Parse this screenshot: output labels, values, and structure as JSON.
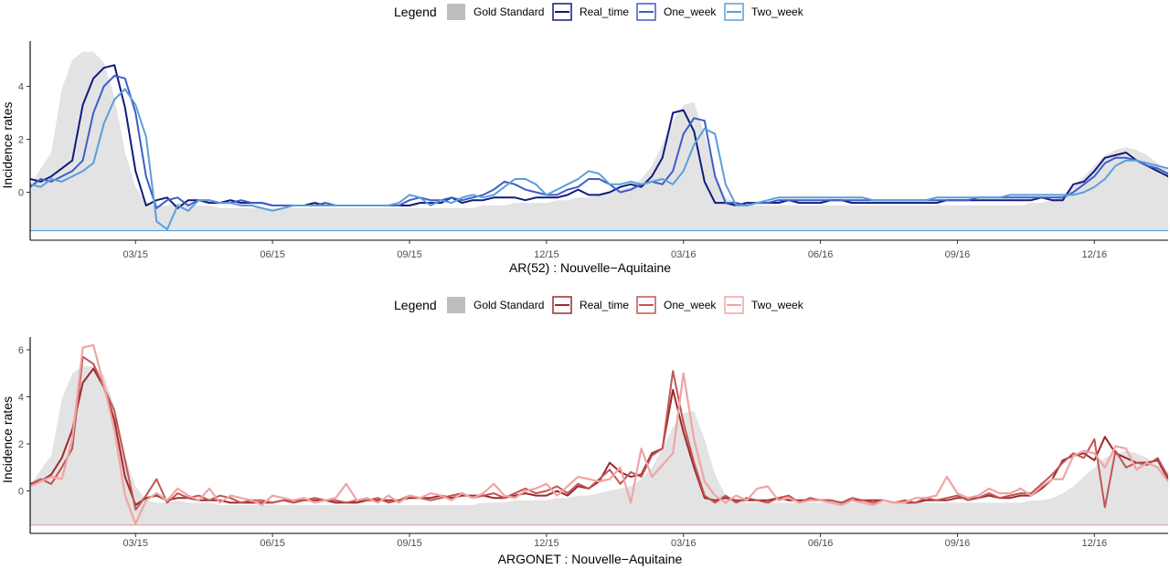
{
  "chart_data": [
    {
      "type": "line",
      "title": "",
      "xlabel": "AR(52) : Nouvelle−Aquitaine",
      "ylabel": "Incidence rates",
      "legend_title": "Legend",
      "legend_position": "top",
      "grid": false,
      "x_unit": "week",
      "x_start": "2015-01",
      "ylim": [
        -1.45,
        5.6
      ],
      "yticks": [
        0,
        2,
        4
      ],
      "xticks": [
        {
          "label": "03/15",
          "week": 10
        },
        {
          "label": "06/15",
          "week": 23
        },
        {
          "label": "09/15",
          "week": 36
        },
        {
          "label": "12/15",
          "week": 49
        },
        {
          "label": "03/16",
          "week": 62
        },
        {
          "label": "06/16",
          "week": 75
        },
        {
          "label": "09/16",
          "week": 88
        },
        {
          "label": "12/16",
          "week": 101
        }
      ],
      "baseline": -1.45,
      "gold": {
        "name": "Gold Standard",
        "color": "#bebebe",
        "values": [
          0.2,
          0.9,
          1.5,
          3.9,
          5.0,
          5.3,
          5.3,
          4.9,
          3.6,
          1.5,
          0.2,
          -0.4,
          -0.5,
          -0.5,
          -0.4,
          -0.5,
          -0.5,
          -0.5,
          -0.6,
          -0.6,
          -0.6,
          -0.6,
          -0.6,
          -0.6,
          -0.6,
          -0.6,
          -0.6,
          -0.6,
          -0.6,
          -0.6,
          -0.6,
          -0.6,
          -0.6,
          -0.6,
          -0.6,
          -0.6,
          -0.6,
          -0.6,
          -0.6,
          -0.6,
          -0.6,
          -0.6,
          -0.6,
          -0.5,
          -0.5,
          -0.5,
          -0.4,
          -0.4,
          -0.4,
          -0.4,
          -0.3,
          -0.3,
          -0.2,
          -0.2,
          -0.1,
          0.0,
          0.1,
          0.2,
          0.5,
          1.0,
          1.8,
          2.7,
          3.3,
          3.4,
          2.2,
          0.7,
          -0.2,
          -0.4,
          -0.5,
          -0.5,
          -0.5,
          -0.5,
          -0.5,
          -0.5,
          -0.5,
          -0.5,
          -0.5,
          -0.5,
          -0.5,
          -0.5,
          -0.5,
          -0.5,
          -0.5,
          -0.5,
          -0.5,
          -0.5,
          -0.5,
          -0.5,
          -0.5,
          -0.5,
          -0.5,
          -0.5,
          -0.5,
          -0.5,
          -0.5,
          -0.4,
          -0.4,
          -0.3,
          -0.1,
          0.2,
          0.6,
          1.0,
          1.4,
          1.6,
          1.7,
          1.6,
          1.4,
          1.1,
          0.8,
          0.3,
          -0.1
        ]
      },
      "series": [
        {
          "name": "Real_time",
          "color": "#111a7e",
          "width": 2.0,
          "values": [
            0.5,
            0.4,
            0.6,
            0.9,
            1.2,
            3.3,
            4.3,
            4.7,
            4.8,
            3.2,
            0.8,
            -0.5,
            -0.3,
            -0.2,
            -0.6,
            -0.3,
            -0.3,
            -0.4,
            -0.4,
            -0.3,
            -0.4,
            -0.4,
            -0.4,
            -0.5,
            -0.5,
            -0.5,
            -0.5,
            -0.4,
            -0.5,
            -0.5,
            -0.5,
            -0.5,
            -0.5,
            -0.5,
            -0.5,
            -0.5,
            -0.5,
            -0.4,
            -0.4,
            -0.4,
            -0.2,
            -0.4,
            -0.3,
            -0.3,
            -0.2,
            -0.2,
            -0.2,
            -0.3,
            -0.2,
            -0.2,
            -0.2,
            -0.1,
            0.1,
            -0.1,
            -0.1,
            0.0,
            0.2,
            0.3,
            0.2,
            0.6,
            1.3,
            3.0,
            3.1,
            2.3,
            0.4,
            -0.4,
            -0.4,
            -0.5,
            -0.4,
            -0.4,
            -0.4,
            -0.4,
            -0.3,
            -0.4,
            -0.4,
            -0.4,
            -0.3,
            -0.3,
            -0.4,
            -0.4,
            -0.4,
            -0.4,
            -0.4,
            -0.4,
            -0.4,
            -0.4,
            -0.4,
            -0.3,
            -0.3,
            -0.3,
            -0.3,
            -0.3,
            -0.3,
            -0.3,
            -0.3,
            -0.3,
            -0.2,
            -0.3,
            -0.3,
            0.3,
            0.4,
            0.8,
            1.3,
            1.4,
            1.5,
            1.2,
            1.0,
            0.8,
            0.6,
            0.2
          ]
        },
        {
          "name": "One_week",
          "color": "#3f5dc8",
          "width": 2.0,
          "values": [
            0.2,
            0.5,
            0.4,
            0.6,
            0.8,
            1.2,
            3.0,
            4.0,
            4.4,
            4.3,
            3.0,
            0.6,
            -0.6,
            -0.3,
            -0.2,
            -0.5,
            -0.3,
            -0.3,
            -0.4,
            -0.4,
            -0.3,
            -0.4,
            -0.4,
            -0.5,
            -0.5,
            -0.5,
            -0.5,
            -0.5,
            -0.4,
            -0.5,
            -0.5,
            -0.5,
            -0.5,
            -0.5,
            -0.5,
            -0.5,
            -0.3,
            -0.2,
            -0.3,
            -0.3,
            -0.2,
            -0.3,
            -0.2,
            -0.1,
            0.1,
            0.4,
            0.3,
            0.1,
            0.0,
            -0.1,
            -0.1,
            0.1,
            0.2,
            0.5,
            0.5,
            0.3,
            0.0,
            0.1,
            0.3,
            0.4,
            0.3,
            0.8,
            2.2,
            2.8,
            2.7,
            0.6,
            -0.4,
            -0.4,
            -0.5,
            -0.4,
            -0.4,
            -0.3,
            -0.3,
            -0.3,
            -0.3,
            -0.3,
            -0.3,
            -0.3,
            -0.3,
            -0.3,
            -0.3,
            -0.3,
            -0.3,
            -0.3,
            -0.3,
            -0.3,
            -0.3,
            -0.3,
            -0.3,
            -0.3,
            -0.2,
            -0.2,
            -0.2,
            -0.2,
            -0.2,
            -0.2,
            -0.2,
            -0.2,
            -0.2,
            0.0,
            0.3,
            0.6,
            1.1,
            1.3,
            1.3,
            1.2,
            1.0,
            0.9,
            0.7,
            0.6
          ]
        },
        {
          "name": "Two_week",
          "color": "#5a9fd8",
          "width": 2.0,
          "values": [
            0.3,
            0.2,
            0.5,
            0.4,
            0.6,
            0.8,
            1.1,
            2.6,
            3.5,
            3.9,
            3.3,
            2.1,
            -1.1,
            -1.4,
            -0.5,
            -0.7,
            -0.3,
            -0.3,
            -0.4,
            -0.4,
            -0.5,
            -0.5,
            -0.6,
            -0.7,
            -0.6,
            -0.5,
            -0.5,
            -0.5,
            -0.5,
            -0.5,
            -0.5,
            -0.5,
            -0.5,
            -0.5,
            -0.5,
            -0.4,
            -0.1,
            -0.2,
            -0.5,
            -0.3,
            -0.4,
            -0.2,
            -0.1,
            -0.2,
            -0.1,
            0.2,
            0.5,
            0.5,
            0.3,
            -0.1,
            0.1,
            0.3,
            0.5,
            0.8,
            0.7,
            0.3,
            0.3,
            0.4,
            0.3,
            0.4,
            0.5,
            0.3,
            0.8,
            1.8,
            2.4,
            2.2,
            0.3,
            -0.5,
            -0.5,
            -0.4,
            -0.3,
            -0.2,
            -0.2,
            -0.2,
            -0.2,
            -0.2,
            -0.2,
            -0.2,
            -0.2,
            -0.2,
            -0.3,
            -0.3,
            -0.3,
            -0.3,
            -0.3,
            -0.3,
            -0.2,
            -0.2,
            -0.2,
            -0.2,
            -0.2,
            -0.2,
            -0.2,
            -0.1,
            -0.1,
            -0.1,
            -0.1,
            -0.1,
            -0.1,
            -0.1,
            0.0,
            0.2,
            0.5,
            1.0,
            1.2,
            1.2,
            1.1,
            1.0,
            0.9,
            0.8
          ]
        }
      ]
    },
    {
      "type": "line",
      "title": "",
      "xlabel": "ARGONET : Nouvelle−Aquitaine",
      "ylabel": "Incidence rates",
      "legend_title": "Legend",
      "legend_position": "top",
      "grid": false,
      "x_unit": "week",
      "x_start": "2015-01",
      "ylim": [
        -1.45,
        6.5
      ],
      "yticks": [
        0,
        2,
        4,
        6
      ],
      "xticks": [
        {
          "label": "03/15",
          "week": 10
        },
        {
          "label": "06/15",
          "week": 23
        },
        {
          "label": "09/15",
          "week": 36
        },
        {
          "label": "12/15",
          "week": 49
        },
        {
          "label": "03/16",
          "week": 62
        },
        {
          "label": "06/16",
          "week": 75
        },
        {
          "label": "09/16",
          "week": 88
        },
        {
          "label": "12/16",
          "week": 101
        }
      ],
      "baseline": -1.45,
      "gold": {
        "name": "Gold Standard",
        "color": "#bebebe",
        "values": [
          0.2,
          0.9,
          1.5,
          3.9,
          5.0,
          5.3,
          5.3,
          4.9,
          3.6,
          1.5,
          0.2,
          -0.4,
          -0.5,
          -0.5,
          -0.4,
          -0.5,
          -0.5,
          -0.5,
          -0.6,
          -0.6,
          -0.6,
          -0.6,
          -0.6,
          -0.6,
          -0.6,
          -0.6,
          -0.6,
          -0.6,
          -0.6,
          -0.6,
          -0.6,
          -0.6,
          -0.6,
          -0.6,
          -0.6,
          -0.6,
          -0.6,
          -0.6,
          -0.6,
          -0.6,
          -0.6,
          -0.6,
          -0.6,
          -0.5,
          -0.5,
          -0.5,
          -0.4,
          -0.4,
          -0.4,
          -0.4,
          -0.3,
          -0.3,
          -0.2,
          -0.2,
          -0.1,
          0.0,
          0.1,
          0.2,
          0.5,
          1.0,
          1.8,
          2.7,
          3.3,
          3.4,
          2.2,
          0.7,
          -0.2,
          -0.4,
          -0.5,
          -0.5,
          -0.5,
          -0.5,
          -0.5,
          -0.5,
          -0.5,
          -0.5,
          -0.5,
          -0.5,
          -0.5,
          -0.5,
          -0.5,
          -0.5,
          -0.5,
          -0.5,
          -0.5,
          -0.5,
          -0.5,
          -0.5,
          -0.5,
          -0.5,
          -0.5,
          -0.5,
          -0.5,
          -0.5,
          -0.5,
          -0.4,
          -0.4,
          -0.3,
          -0.1,
          0.2,
          0.6,
          1.0,
          1.4,
          1.6,
          1.7,
          1.6,
          1.4,
          1.1,
          0.8,
          0.3,
          -0.1
        ]
      },
      "series": [
        {
          "name": "Real_time",
          "color": "#9b2b2b",
          "width": 2.0,
          "values": [
            0.3,
            0.4,
            0.7,
            1.4,
            2.6,
            4.6,
            5.2,
            4.4,
            3.0,
            0.6,
            -0.6,
            -0.3,
            -0.2,
            -0.4,
            -0.3,
            -0.3,
            -0.4,
            -0.4,
            -0.4,
            -0.5,
            -0.5,
            -0.5,
            -0.5,
            -0.5,
            -0.4,
            -0.4,
            -0.4,
            -0.4,
            -0.4,
            -0.5,
            -0.5,
            -0.5,
            -0.4,
            -0.4,
            -0.4,
            -0.4,
            -0.3,
            -0.3,
            -0.3,
            -0.2,
            -0.3,
            -0.2,
            -0.2,
            -0.2,
            -0.3,
            -0.3,
            -0.2,
            -0.1,
            -0.2,
            -0.2,
            0.0,
            -0.2,
            0.2,
            0.1,
            0.4,
            1.2,
            0.8,
            0.6,
            0.7,
            1.6,
            1.8,
            4.3,
            2.5,
            1.0,
            -0.3,
            -0.4,
            -0.3,
            -0.4,
            -0.4,
            -0.4,
            -0.4,
            -0.3,
            -0.4,
            -0.4,
            -0.4,
            -0.4,
            -0.4,
            -0.5,
            -0.4,
            -0.4,
            -0.4,
            -0.4,
            -0.5,
            -0.5,
            -0.5,
            -0.4,
            -0.4,
            -0.4,
            -0.3,
            -0.3,
            -0.3,
            -0.2,
            -0.3,
            -0.3,
            -0.2,
            -0.2,
            0.1,
            0.5,
            1.3,
            1.5,
            1.6,
            1.3,
            2.3,
            1.6,
            1.4,
            1.2,
            1.2,
            1.3,
            0.5
          ]
        },
        {
          "name": "One_week",
          "color": "#c25454",
          "width": 2.0,
          "values": [
            0.3,
            0.5,
            0.3,
            1.0,
            1.8,
            5.7,
            5.4,
            4.4,
            3.4,
            1.3,
            -0.8,
            -0.2,
            0.5,
            -0.5,
            -0.1,
            -0.3,
            -0.2,
            -0.4,
            -0.2,
            -0.3,
            -0.5,
            -0.4,
            -0.4,
            -0.5,
            -0.4,
            -0.5,
            -0.4,
            -0.3,
            -0.4,
            -0.4,
            -0.5,
            -0.4,
            -0.4,
            -0.3,
            -0.5,
            -0.4,
            -0.2,
            -0.3,
            -0.4,
            -0.3,
            -0.2,
            -0.1,
            -0.3,
            -0.2,
            -0.1,
            -0.3,
            -0.1,
            0.1,
            -0.1,
            0.0,
            0.2,
            -0.1,
            0.3,
            0.1,
            0.5,
            0.9,
            0.3,
            0.8,
            0.6,
            1.5,
            1.8,
            5.1,
            2.9,
            1.2,
            -0.2,
            -0.5,
            -0.2,
            -0.5,
            -0.3,
            -0.4,
            -0.5,
            -0.3,
            -0.2,
            -0.5,
            -0.3,
            -0.4,
            -0.4,
            -0.5,
            -0.3,
            -0.4,
            -0.5,
            -0.4,
            -0.5,
            -0.4,
            -0.5,
            -0.3,
            -0.4,
            -0.3,
            -0.2,
            -0.4,
            -0.3,
            -0.1,
            -0.3,
            -0.2,
            -0.1,
            -0.1,
            0.3,
            0.7,
            1.2,
            1.6,
            1.4,
            2.2,
            -0.7,
            1.7,
            1.0,
            1.2,
            1.1,
            1.4,
            0.6
          ]
        },
        {
          "name": "Two_week",
          "color": "#f0a4a4",
          "width": 2.2,
          "values": [
            0.2,
            0.4,
            0.6,
            0.5,
            2.2,
            6.1,
            6.2,
            4.5,
            2.6,
            -0.2,
            -1.4,
            -0.4,
            -0.1,
            -0.4,
            0.1,
            -0.2,
            -0.4,
            0.1,
            -0.5,
            -0.2,
            -0.3,
            -0.4,
            -0.6,
            -0.2,
            -0.3,
            -0.4,
            -0.3,
            -0.5,
            -0.4,
            -0.3,
            0.3,
            -0.4,
            -0.3,
            -0.5,
            -0.2,
            -0.5,
            -0.2,
            -0.3,
            -0.1,
            -0.2,
            -0.4,
            -0.1,
            -0.3,
            -0.1,
            0.3,
            -0.2,
            -0.3,
            0.0,
            0.1,
            0.3,
            -0.2,
            0.2,
            0.6,
            0.5,
            0.4,
            0.5,
            1.0,
            -0.5,
            1.8,
            0.6,
            1.1,
            1.6,
            5.0,
            2.2,
            0.4,
            -0.2,
            -0.5,
            -0.2,
            -0.4,
            0.1,
            0.2,
            -0.4,
            -0.3,
            -0.5,
            -0.4,
            -0.4,
            -0.5,
            -0.6,
            -0.4,
            -0.5,
            -0.6,
            -0.4,
            -0.5,
            -0.5,
            -0.3,
            -0.3,
            -0.2,
            0.6,
            -0.1,
            -0.3,
            -0.2,
            0.1,
            -0.1,
            -0.1,
            0.1,
            -0.2,
            0.2,
            0.5,
            0.5,
            1.5,
            1.7,
            1.6,
            1.0,
            1.9,
            1.8,
            0.9,
            1.2,
            1.0,
            0.4
          ]
        }
      ]
    }
  ]
}
